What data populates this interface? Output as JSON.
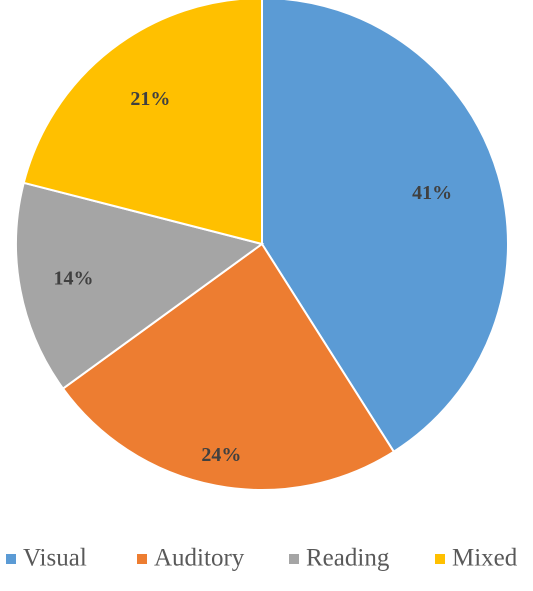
{
  "chart_data": {
    "type": "pie",
    "title": "",
    "slices": [
      {
        "name": "Visual",
        "value": 41,
        "label": "41%",
        "color": "#5B9BD5"
      },
      {
        "name": "Auditory",
        "value": 24,
        "label": "24%",
        "color": "#ED7D31"
      },
      {
        "name": "Reading",
        "value": 14,
        "label": "14%",
        "color": "#A5A5A5"
      },
      {
        "name": "Mixed",
        "value": 21,
        "label": "21%",
        "color": "#FFC000"
      }
    ],
    "legend_position": "bottom"
  }
}
